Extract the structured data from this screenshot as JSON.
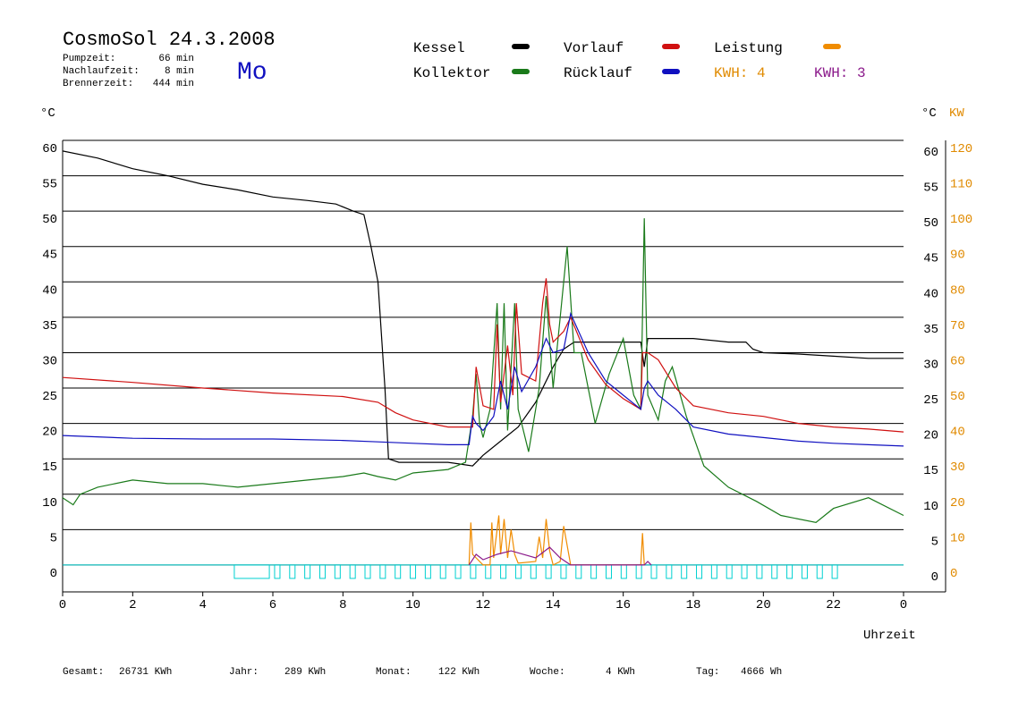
{
  "chart_data": {
    "type": "line",
    "title": "CosmoSol 24.3.2008",
    "day": "Mo",
    "info": [
      {
        "label": "Pumpzeit:",
        "value": "66 min"
      },
      {
        "label": "Nachlaufzeit:",
        "value": "8 min"
      },
      {
        "label": "Brennerzeit:",
        "value": "444 min"
      }
    ],
    "kwh": [
      {
        "label": "KWH: 4",
        "color": "#e08a00"
      },
      {
        "label": "KWH: 3",
        "color": "#8b1a8b"
      }
    ],
    "y_unit": "°C",
    "y2_unit": "KW",
    "x_label": "Uhrzeit",
    "xlim": [
      0,
      25.2
    ],
    "xticks": [
      0,
      2,
      4,
      6,
      8,
      10,
      12,
      14,
      16,
      18,
      20,
      22,
      {
        "value": 24,
        "label": "0"
      }
    ],
    "ylim": [
      -3.8,
      60
    ],
    "yticks": [
      0,
      5,
      10,
      15,
      20,
      25,
      30,
      35,
      40,
      45,
      50,
      55,
      60
    ],
    "y2lim": [
      -7.6,
      120
    ],
    "y2ticks": [
      0,
      10,
      20,
      30,
      40,
      50,
      60,
      70,
      80,
      90,
      100,
      110,
      120
    ],
    "grid": true,
    "series": [
      {
        "name": "Kessel",
        "color": "#000000",
        "x": [
          0,
          1,
          2,
          3,
          4,
          5,
          6,
          7,
          7.8,
          8.3,
          8.6,
          8.8,
          9.0,
          9.2,
          9.3,
          9.6,
          10,
          11,
          11.7,
          12,
          12.5,
          13,
          13.5,
          14,
          14.3,
          14.6,
          15,
          16,
          16.5,
          16.6,
          16.7,
          17,
          18,
          19,
          19.5,
          19.7,
          20,
          21,
          22,
          23,
          24
        ],
        "values": [
          58.5,
          57.5,
          56,
          55,
          53.8,
          53,
          52,
          51.5,
          51,
          50,
          49.5,
          45,
          40,
          25,
          15,
          14.5,
          14.5,
          14.5,
          14,
          15.5,
          17.5,
          19.5,
          23,
          28,
          30.5,
          31.5,
          31.5,
          31.5,
          31.5,
          28,
          32,
          32,
          32,
          31.5,
          31.5,
          30.5,
          30,
          29.8,
          29.5,
          29.2,
          29.2
        ]
      },
      {
        "name": "Kollektor",
        "color": "#1a7a1a",
        "x": [
          0,
          0.3,
          0.5,
          1,
          2,
          3,
          4,
          5,
          6,
          7,
          8,
          8.6,
          9,
          9.5,
          10,
          11,
          11.5,
          11.7,
          11.8,
          11.9,
          12,
          12.2,
          12.4,
          12.5,
          12.6,
          12.7,
          12.9,
          13,
          13.3,
          13.6,
          13.8,
          14,
          14.2,
          14.4,
          14.6,
          14.8,
          15.2,
          15.6,
          16,
          16.3,
          16.5,
          16.6,
          16.7,
          17,
          17.2,
          17.4,
          17.8,
          18.3,
          19,
          19.8,
          20.5,
          21.5,
          22,
          23,
          24
        ],
        "values": [
          9.5,
          8.5,
          10,
          11,
          12,
          11.5,
          11.5,
          11,
          11.5,
          12,
          12.5,
          13,
          12.5,
          12,
          13,
          13.5,
          14.5,
          21,
          27,
          20,
          18,
          22,
          37,
          22,
          37,
          19,
          37,
          22,
          16,
          25,
          38,
          25,
          35,
          45,
          30,
          30,
          20,
          27,
          32,
          24,
          22,
          49,
          24,
          20.5,
          26,
          28,
          21,
          14,
          11,
          9,
          7,
          6,
          8,
          9.5,
          7
        ]
      },
      {
        "name": "Vorlauf",
        "color": "#d01010",
        "x": [
          0,
          2,
          4,
          6,
          8,
          9,
          9.5,
          10,
          11,
          11.7,
          11.8,
          12,
          12.3,
          12.4,
          12.5,
          12.7,
          12.85,
          12.95,
          13.1,
          13.5,
          13.7,
          13.8,
          13.9,
          14,
          14.3,
          14.5,
          15,
          15.5,
          16,
          16.5,
          16.55,
          16.7,
          17,
          17.5,
          18,
          19,
          20,
          21,
          22,
          23,
          24
        ],
        "values": [
          26.5,
          25.8,
          25,
          24.3,
          23.8,
          23,
          21.5,
          20.5,
          19.5,
          19.5,
          28,
          22.5,
          22,
          34,
          23,
          31,
          24,
          37,
          27,
          26,
          37,
          40.5,
          34,
          31.5,
          33,
          35,
          29,
          25.5,
          23.5,
          22,
          30,
          30,
          29,
          25,
          22.5,
          21.5,
          21,
          20,
          19.5,
          19.2,
          18.8
        ]
      },
      {
        "name": "Rücklauf",
        "color": "#1010c0",
        "x": [
          0,
          2,
          4,
          6,
          8,
          9,
          10,
          11,
          11.6,
          11.7,
          11.8,
          12,
          12.3,
          12.5,
          12.7,
          12.9,
          13.1,
          13.5,
          13.8,
          14,
          14.3,
          14.5,
          15,
          15.5,
          16,
          16.5,
          16.6,
          16.7,
          17,
          17.5,
          18,
          19,
          20,
          21,
          22,
          23,
          24
        ],
        "values": [
          18.3,
          17.9,
          17.8,
          17.8,
          17.6,
          17.4,
          17.2,
          17,
          17,
          21,
          20,
          19,
          21,
          26,
          22,
          28,
          24.5,
          28,
          32,
          30,
          30.5,
          35.5,
          30,
          26,
          24,
          22,
          25,
          26,
          24,
          22,
          19.5,
          18.5,
          18,
          17.5,
          17.2,
          17,
          16.8
        ]
      },
      {
        "name": "Leistung",
        "color": "#f08c00",
        "axis": "y2",
        "x": [
          11.6,
          11.65,
          11.7,
          12,
          12.2,
          12.25,
          12.3,
          12.45,
          12.5,
          12.6,
          12.7,
          12.8,
          12.9,
          13,
          13.5,
          13.6,
          13.7,
          13.8,
          13.9,
          14,
          14.2,
          14.3,
          14.5,
          16.5,
          16.55,
          16.6
        ],
        "values": [
          0,
          12,
          3,
          0,
          0,
          12,
          2,
          14,
          3,
          13,
          2,
          10,
          3,
          0.5,
          1,
          8,
          2,
          13,
          4,
          0,
          1,
          11,
          0,
          0,
          9,
          0
        ]
      },
      {
        "color": "#8b1a8b",
        "axis": "y2",
        "x": [
          11.6,
          11.8,
          12,
          12.4,
          12.8,
          13.5,
          13.9,
          14.2,
          14.5,
          16.6,
          16.7,
          16.8
        ],
        "values": [
          0,
          3,
          1.5,
          3,
          4,
          2,
          5,
          2,
          0,
          0,
          1,
          0
        ]
      }
    ],
    "totals": [
      {
        "label": "Gesamt:",
        "value": "26731 KWh"
      },
      {
        "label": "Jahr:",
        "value": "289 KWh"
      },
      {
        "label": "Monat:",
        "value": "122 KWh"
      },
      {
        "label": "Woche:",
        "value": "4 KWh"
      },
      {
        "label": "Tag:",
        "value": "4666 Wh"
      }
    ]
  }
}
